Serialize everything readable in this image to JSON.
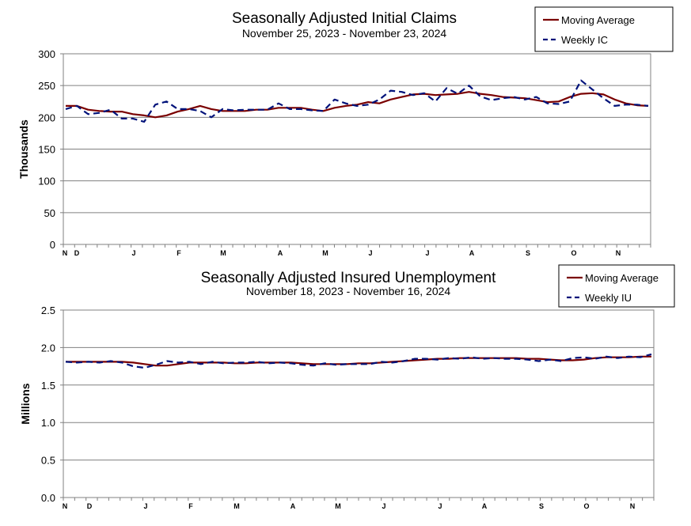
{
  "chart_data": [
    {
      "type": "line",
      "title": "Seasonally Adjusted Initial Claims",
      "subtitle": "November 25, 2023 - November 23, 2024",
      "xlabel": "",
      "ylabel": "Thousands",
      "ylim": [
        0,
        300
      ],
      "yticks": [
        "0",
        "50",
        "100",
        "150",
        "200",
        "250",
        "300"
      ],
      "grid": true,
      "legend_position": "top-right",
      "x_ticks": [
        "N",
        "D",
        "J",
        "F",
        "M",
        "A",
        "M",
        "J",
        "J",
        "A",
        "S",
        "O",
        "N"
      ],
      "series": [
        {
          "name": "Moving Average",
          "color": "#7a0000",
          "style": "solid",
          "values": [
            218,
            218,
            212,
            210,
            209,
            209,
            205,
            203,
            200,
            203,
            209,
            213,
            218,
            213,
            210,
            210,
            210,
            212,
            212,
            215,
            215,
            215,
            212,
            210,
            215,
            218,
            220,
            224,
            222,
            228,
            232,
            236,
            237,
            235,
            236,
            237,
            240,
            237,
            235,
            232,
            231,
            230,
            227,
            224,
            225,
            232,
            237,
            238,
            236,
            228,
            222,
            219,
            218
          ]
        },
        {
          "name": "Weekly IC",
          "color": "#00127a",
          "style": "dashed",
          "values": [
            213,
            218,
            205,
            207,
            212,
            198,
            198,
            193,
            220,
            225,
            213,
            213,
            210,
            200,
            213,
            211,
            212,
            212,
            212,
            222,
            213,
            213,
            211,
            210,
            228,
            222,
            218,
            220,
            228,
            242,
            240,
            235,
            238,
            225,
            246,
            237,
            250,
            233,
            227,
            230,
            232,
            228,
            232,
            222,
            221,
            225,
            258,
            244,
            230,
            218,
            220,
            220,
            218
          ]
        }
      ]
    },
    {
      "type": "line",
      "title": "Seasonally Adjusted Insured Unemployment",
      "subtitle": "November 18, 2023 - November 16, 2024",
      "xlabel": "",
      "ylabel": "Millions",
      "ylim": [
        0,
        2.5
      ],
      "yticks": [
        "0.0",
        "0.5",
        "1.0",
        "1.5",
        "2.0",
        "2.5"
      ],
      "grid": true,
      "legend_position": "top-right",
      "x_ticks": [
        "N",
        "D",
        "J",
        "F",
        "M",
        "A",
        "M",
        "J",
        "J",
        "A",
        "S",
        "O",
        "N"
      ],
      "series": [
        {
          "name": "Moving Average",
          "color": "#7a0000",
          "style": "solid",
          "values": [
            1.81,
            1.81,
            1.81,
            1.81,
            1.81,
            1.81,
            1.8,
            1.78,
            1.76,
            1.76,
            1.78,
            1.8,
            1.8,
            1.8,
            1.8,
            1.79,
            1.79,
            1.8,
            1.8,
            1.8,
            1.8,
            1.79,
            1.78,
            1.78,
            1.78,
            1.78,
            1.79,
            1.79,
            1.8,
            1.81,
            1.82,
            1.83,
            1.84,
            1.85,
            1.85,
            1.86,
            1.86,
            1.86,
            1.86,
            1.86,
            1.86,
            1.85,
            1.85,
            1.84,
            1.83,
            1.83,
            1.84,
            1.86,
            1.87,
            1.87,
            1.87,
            1.88,
            1.88
          ]
        },
        {
          "name": "Weekly IU",
          "color": "#00127a",
          "style": "dashed",
          "values": [
            1.81,
            1.8,
            1.81,
            1.8,
            1.82,
            1.8,
            1.75,
            1.73,
            1.77,
            1.82,
            1.8,
            1.81,
            1.78,
            1.81,
            1.79,
            1.8,
            1.8,
            1.81,
            1.79,
            1.8,
            1.79,
            1.77,
            1.76,
            1.79,
            1.77,
            1.78,
            1.78,
            1.78,
            1.81,
            1.8,
            1.82,
            1.85,
            1.85,
            1.84,
            1.86,
            1.85,
            1.87,
            1.85,
            1.86,
            1.85,
            1.85,
            1.84,
            1.82,
            1.84,
            1.82,
            1.86,
            1.87,
            1.85,
            1.88,
            1.86,
            1.88,
            1.87,
            1.91
          ]
        }
      ]
    }
  ]
}
